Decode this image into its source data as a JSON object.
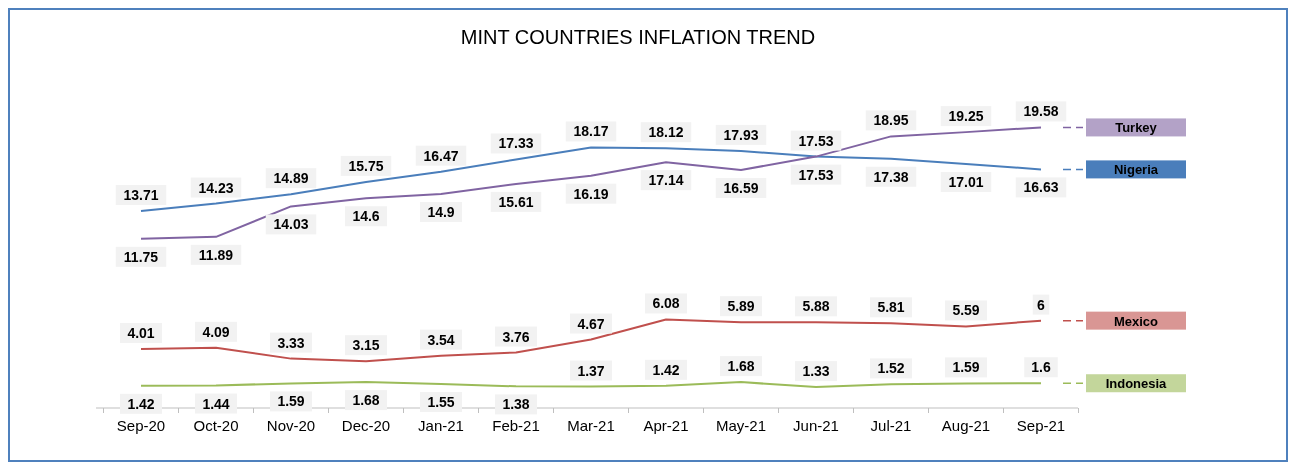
{
  "chart_data": {
    "type": "line",
    "title": "MINT COUNTRIES INFLATION TREND",
    "categories": [
      "Sep-20",
      "Oct-20",
      "Nov-20",
      "Dec-20",
      "Jan-21",
      "Feb-21",
      "Mar-21",
      "Apr-21",
      "May-21",
      "Jun-21",
      "Jul-21",
      "Aug-21",
      "Sep-21"
    ],
    "series": [
      {
        "name": "Nigeria",
        "color": "#4a7ebb",
        "values": [
          13.71,
          14.23,
          14.89,
          15.75,
          16.47,
          17.33,
          18.17,
          18.12,
          17.93,
          17.53,
          17.38,
          17.01,
          16.63
        ]
      },
      {
        "name": "Turkey",
        "color": "#8064a2",
        "values": [
          11.75,
          11.89,
          14.03,
          14.6,
          14.9,
          15.61,
          16.19,
          17.14,
          16.59,
          17.53,
          18.95,
          19.25,
          19.58
        ]
      },
      {
        "name": "Mexico",
        "color": "#c0504d",
        "values": [
          4.01,
          4.09,
          3.33,
          3.15,
          3.54,
          3.76,
          4.67,
          6.08,
          5.89,
          5.88,
          5.81,
          5.59,
          6
        ]
      },
      {
        "name": "Indonesia",
        "color": "#9bbb59",
        "values": [
          1.42,
          1.44,
          1.59,
          1.68,
          1.55,
          1.38,
          1.37,
          1.42,
          1.68,
          1.33,
          1.52,
          1.59,
          1.6
        ]
      }
    ],
    "data_labels": true,
    "legend": "right",
    "tick_labels": "x"
  }
}
